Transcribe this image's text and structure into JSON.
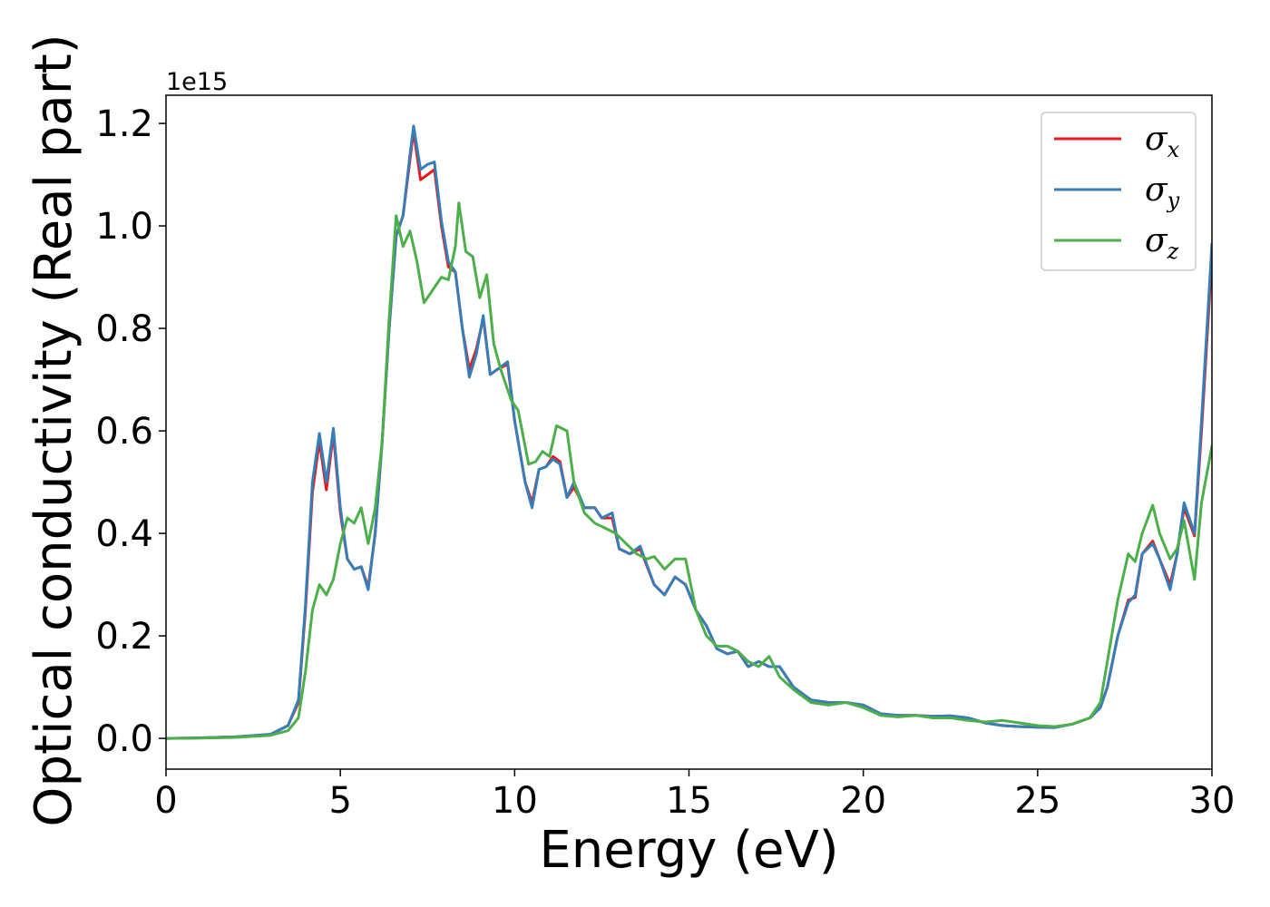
{
  "chart_data": {
    "type": "line",
    "title": "",
    "xlabel": "Energy (eV)",
    "ylabel": "Optical conductivity (Real part)",
    "y_offset_text": "1e15",
    "xlim": [
      0,
      30
    ],
    "ylim": [
      -0.06,
      1.255
    ],
    "x_ticks": [
      0,
      5,
      10,
      15,
      20,
      25,
      30
    ],
    "x_tick_labels": [
      "0",
      "5",
      "10",
      "15",
      "20",
      "25",
      "30"
    ],
    "y_ticks": [
      0.0,
      0.2,
      0.4,
      0.6,
      0.8,
      1.0,
      1.2
    ],
    "y_tick_labels": [
      "0.0",
      "0.2",
      "0.4",
      "0.6",
      "0.8",
      "1.0",
      "1.2"
    ],
    "grid": false,
    "legend_position": "top-right",
    "series": [
      {
        "name": "σx",
        "symbol": "σ",
        "subscript": "x",
        "color": "#e41a1c",
        "points": [
          [
            0,
            0.0
          ],
          [
            1,
            0.001
          ],
          [
            2,
            0.003
          ],
          [
            3,
            0.008
          ],
          [
            3.5,
            0.025
          ],
          [
            3.8,
            0.07
          ],
          [
            4.0,
            0.25
          ],
          [
            4.2,
            0.48
          ],
          [
            4.4,
            0.58
          ],
          [
            4.6,
            0.485
          ],
          [
            4.8,
            0.595
          ],
          [
            5.0,
            0.44
          ],
          [
            5.2,
            0.35
          ],
          [
            5.4,
            0.33
          ],
          [
            5.6,
            0.335
          ],
          [
            5.8,
            0.295
          ],
          [
            6.0,
            0.4
          ],
          [
            6.2,
            0.58
          ],
          [
            6.4,
            0.8
          ],
          [
            6.6,
            0.98
          ],
          [
            6.8,
            1.02
          ],
          [
            7.0,
            1.13
          ],
          [
            7.1,
            1.185
          ],
          [
            7.3,
            1.09
          ],
          [
            7.5,
            1.1
          ],
          [
            7.7,
            1.11
          ],
          [
            7.9,
            1.0
          ],
          [
            8.1,
            0.92
          ],
          [
            8.3,
            0.91
          ],
          [
            8.5,
            0.8
          ],
          [
            8.7,
            0.72
          ],
          [
            8.9,
            0.76
          ],
          [
            9.1,
            0.82
          ],
          [
            9.3,
            0.71
          ],
          [
            9.5,
            0.72
          ],
          [
            9.8,
            0.73
          ],
          [
            10.0,
            0.62
          ],
          [
            10.3,
            0.5
          ],
          [
            10.5,
            0.46
          ],
          [
            10.7,
            0.525
          ],
          [
            10.9,
            0.53
          ],
          [
            11.1,
            0.55
          ],
          [
            11.3,
            0.54
          ],
          [
            11.5,
            0.47
          ],
          [
            11.7,
            0.49
          ],
          [
            12.0,
            0.45
          ],
          [
            12.3,
            0.45
          ],
          [
            12.5,
            0.43
          ],
          [
            12.8,
            0.43
          ],
          [
            13.0,
            0.37
          ],
          [
            13.3,
            0.36
          ],
          [
            13.6,
            0.37
          ],
          [
            14.0,
            0.3
          ],
          [
            14.3,
            0.28
          ],
          [
            14.6,
            0.315
          ],
          [
            14.9,
            0.3
          ],
          [
            15.2,
            0.25
          ],
          [
            15.5,
            0.22
          ],
          [
            15.8,
            0.175
          ],
          [
            16.1,
            0.165
          ],
          [
            16.4,
            0.17
          ],
          [
            16.7,
            0.14
          ],
          [
            17.0,
            0.15
          ],
          [
            17.3,
            0.14
          ],
          [
            17.6,
            0.14
          ],
          [
            18.0,
            0.1
          ],
          [
            18.5,
            0.075
          ],
          [
            19.0,
            0.07
          ],
          [
            19.5,
            0.07
          ],
          [
            20.0,
            0.065
          ],
          [
            20.5,
            0.048
          ],
          [
            21.0,
            0.045
          ],
          [
            21.5,
            0.045
          ],
          [
            22.0,
            0.043
          ],
          [
            22.5,
            0.044
          ],
          [
            23.0,
            0.04
          ],
          [
            23.5,
            0.03
          ],
          [
            24.0,
            0.025
          ],
          [
            24.5,
            0.023
          ],
          [
            25.0,
            0.022
          ],
          [
            25.5,
            0.022
          ],
          [
            26.0,
            0.028
          ],
          [
            26.5,
            0.04
          ],
          [
            26.8,
            0.06
          ],
          [
            27.0,
            0.1
          ],
          [
            27.3,
            0.2
          ],
          [
            27.6,
            0.27
          ],
          [
            27.8,
            0.275
          ],
          [
            28.0,
            0.36
          ],
          [
            28.3,
            0.385
          ],
          [
            28.5,
            0.35
          ],
          [
            28.8,
            0.3
          ],
          [
            29.0,
            0.36
          ],
          [
            29.2,
            0.45
          ],
          [
            29.5,
            0.395
          ],
          [
            29.7,
            0.6
          ],
          [
            30.0,
            0.94
          ]
        ]
      },
      {
        "name": "σy",
        "symbol": "σ",
        "subscript": "y",
        "color": "#377eb8",
        "points": [
          [
            0,
            0.0
          ],
          [
            1,
            0.001
          ],
          [
            2,
            0.003
          ],
          [
            3,
            0.008
          ],
          [
            3.5,
            0.025
          ],
          [
            3.8,
            0.075
          ],
          [
            4.0,
            0.26
          ],
          [
            4.2,
            0.5
          ],
          [
            4.4,
            0.595
          ],
          [
            4.6,
            0.5
          ],
          [
            4.8,
            0.605
          ],
          [
            5.0,
            0.45
          ],
          [
            5.2,
            0.35
          ],
          [
            5.4,
            0.33
          ],
          [
            5.6,
            0.335
          ],
          [
            5.8,
            0.29
          ],
          [
            6.0,
            0.4
          ],
          [
            6.2,
            0.58
          ],
          [
            6.4,
            0.8
          ],
          [
            6.6,
            0.98
          ],
          [
            6.8,
            1.02
          ],
          [
            7.0,
            1.14
          ],
          [
            7.1,
            1.195
          ],
          [
            7.3,
            1.11
          ],
          [
            7.5,
            1.12
          ],
          [
            7.7,
            1.125
          ],
          [
            7.9,
            1.01
          ],
          [
            8.1,
            0.93
          ],
          [
            8.3,
            0.91
          ],
          [
            8.5,
            0.8
          ],
          [
            8.7,
            0.705
          ],
          [
            8.9,
            0.75
          ],
          [
            9.1,
            0.825
          ],
          [
            9.3,
            0.71
          ],
          [
            9.5,
            0.72
          ],
          [
            9.8,
            0.735
          ],
          [
            10.0,
            0.62
          ],
          [
            10.3,
            0.5
          ],
          [
            10.5,
            0.45
          ],
          [
            10.7,
            0.525
          ],
          [
            10.9,
            0.53
          ],
          [
            11.1,
            0.545
          ],
          [
            11.3,
            0.535
          ],
          [
            11.5,
            0.47
          ],
          [
            11.7,
            0.5
          ],
          [
            12.0,
            0.45
          ],
          [
            12.3,
            0.45
          ],
          [
            12.5,
            0.43
          ],
          [
            12.8,
            0.44
          ],
          [
            13.0,
            0.37
          ],
          [
            13.3,
            0.36
          ],
          [
            13.6,
            0.375
          ],
          [
            14.0,
            0.3
          ],
          [
            14.3,
            0.28
          ],
          [
            14.6,
            0.315
          ],
          [
            14.9,
            0.3
          ],
          [
            15.2,
            0.25
          ],
          [
            15.5,
            0.22
          ],
          [
            15.8,
            0.175
          ],
          [
            16.1,
            0.165
          ],
          [
            16.4,
            0.17
          ],
          [
            16.7,
            0.14
          ],
          [
            17.0,
            0.15
          ],
          [
            17.3,
            0.14
          ],
          [
            17.6,
            0.14
          ],
          [
            18.0,
            0.1
          ],
          [
            18.5,
            0.075
          ],
          [
            19.0,
            0.07
          ],
          [
            19.5,
            0.07
          ],
          [
            20.0,
            0.065
          ],
          [
            20.5,
            0.048
          ],
          [
            21.0,
            0.045
          ],
          [
            21.5,
            0.045
          ],
          [
            22.0,
            0.043
          ],
          [
            22.5,
            0.044
          ],
          [
            23.0,
            0.04
          ],
          [
            23.5,
            0.03
          ],
          [
            24.0,
            0.025
          ],
          [
            24.5,
            0.023
          ],
          [
            25.0,
            0.022
          ],
          [
            25.5,
            0.021
          ],
          [
            26.0,
            0.028
          ],
          [
            26.5,
            0.04
          ],
          [
            26.8,
            0.06
          ],
          [
            27.0,
            0.1
          ],
          [
            27.3,
            0.2
          ],
          [
            27.6,
            0.265
          ],
          [
            27.8,
            0.28
          ],
          [
            28.0,
            0.36
          ],
          [
            28.3,
            0.38
          ],
          [
            28.5,
            0.35
          ],
          [
            28.8,
            0.29
          ],
          [
            29.0,
            0.36
          ],
          [
            29.2,
            0.46
          ],
          [
            29.5,
            0.4
          ],
          [
            29.7,
            0.62
          ],
          [
            30.0,
            0.965
          ]
        ]
      },
      {
        "name": "σz",
        "symbol": "σ",
        "subscript": "z",
        "color": "#4daf4a",
        "points": [
          [
            0,
            0.0
          ],
          [
            1,
            0.0005
          ],
          [
            2,
            0.002
          ],
          [
            3,
            0.006
          ],
          [
            3.5,
            0.015
          ],
          [
            3.8,
            0.04
          ],
          [
            4.0,
            0.13
          ],
          [
            4.2,
            0.25
          ],
          [
            4.4,
            0.3
          ],
          [
            4.6,
            0.28
          ],
          [
            4.8,
            0.31
          ],
          [
            5.0,
            0.38
          ],
          [
            5.2,
            0.43
          ],
          [
            5.4,
            0.42
          ],
          [
            5.6,
            0.45
          ],
          [
            5.8,
            0.38
          ],
          [
            6.0,
            0.45
          ],
          [
            6.2,
            0.58
          ],
          [
            6.4,
            0.82
          ],
          [
            6.6,
            1.02
          ],
          [
            6.8,
            0.96
          ],
          [
            7.0,
            0.99
          ],
          [
            7.2,
            0.93
          ],
          [
            7.4,
            0.85
          ],
          [
            7.6,
            0.87
          ],
          [
            7.9,
            0.9
          ],
          [
            8.1,
            0.895
          ],
          [
            8.3,
            0.96
          ],
          [
            8.4,
            1.045
          ],
          [
            8.6,
            0.95
          ],
          [
            8.8,
            0.94
          ],
          [
            9.0,
            0.86
          ],
          [
            9.2,
            0.905
          ],
          [
            9.4,
            0.77
          ],
          [
            9.6,
            0.72
          ],
          [
            9.9,
            0.66
          ],
          [
            10.1,
            0.64
          ],
          [
            10.4,
            0.535
          ],
          [
            10.6,
            0.54
          ],
          [
            10.8,
            0.56
          ],
          [
            11.0,
            0.55
          ],
          [
            11.2,
            0.61
          ],
          [
            11.5,
            0.6
          ],
          [
            11.7,
            0.5
          ],
          [
            12.0,
            0.44
          ],
          [
            12.3,
            0.42
          ],
          [
            12.6,
            0.41
          ],
          [
            12.9,
            0.4
          ],
          [
            13.2,
            0.38
          ],
          [
            13.5,
            0.36
          ],
          [
            13.8,
            0.35
          ],
          [
            14.0,
            0.355
          ],
          [
            14.3,
            0.33
          ],
          [
            14.6,
            0.35
          ],
          [
            14.9,
            0.35
          ],
          [
            15.2,
            0.25
          ],
          [
            15.5,
            0.2
          ],
          [
            15.8,
            0.18
          ],
          [
            16.1,
            0.18
          ],
          [
            16.4,
            0.17
          ],
          [
            16.7,
            0.15
          ],
          [
            17.0,
            0.14
          ],
          [
            17.3,
            0.16
          ],
          [
            17.6,
            0.12
          ],
          [
            18.0,
            0.095
          ],
          [
            18.5,
            0.07
          ],
          [
            19.0,
            0.065
          ],
          [
            19.5,
            0.07
          ],
          [
            20.0,
            0.06
          ],
          [
            20.5,
            0.045
          ],
          [
            21.0,
            0.042
          ],
          [
            21.5,
            0.045
          ],
          [
            22.0,
            0.04
          ],
          [
            22.5,
            0.04
          ],
          [
            23.0,
            0.035
          ],
          [
            23.5,
            0.032
          ],
          [
            24.0,
            0.035
          ],
          [
            24.5,
            0.03
          ],
          [
            25.0,
            0.025
          ],
          [
            25.5,
            0.023
          ],
          [
            26.0,
            0.028
          ],
          [
            26.5,
            0.04
          ],
          [
            26.8,
            0.07
          ],
          [
            27.0,
            0.15
          ],
          [
            27.3,
            0.27
          ],
          [
            27.6,
            0.36
          ],
          [
            27.8,
            0.345
          ],
          [
            28.0,
            0.4
          ],
          [
            28.3,
            0.455
          ],
          [
            28.5,
            0.4
          ],
          [
            28.8,
            0.35
          ],
          [
            29.0,
            0.37
          ],
          [
            29.2,
            0.425
          ],
          [
            29.5,
            0.31
          ],
          [
            29.7,
            0.46
          ],
          [
            30.0,
            0.57
          ]
        ]
      }
    ]
  }
}
